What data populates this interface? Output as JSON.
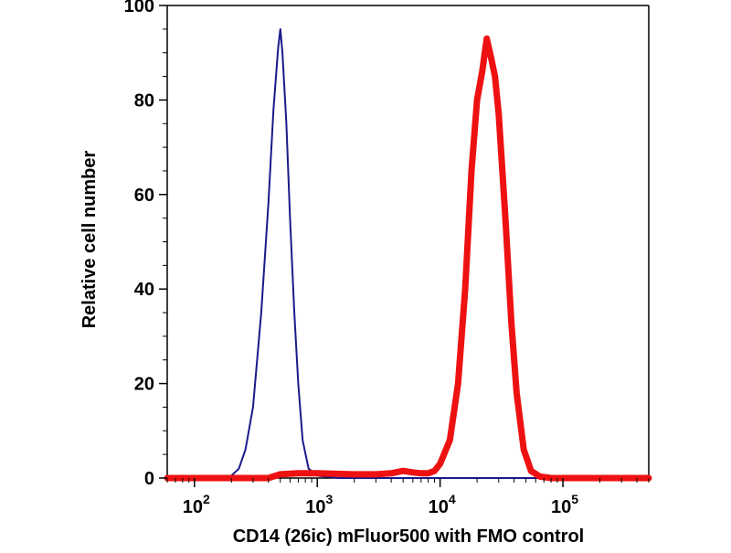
{
  "chart_data": {
    "type": "line",
    "title": "",
    "xlabel": "CD14 (26ic) mFluor500 with FMO control",
    "ylabel": "Relative cell number",
    "x_scale": "log",
    "xlim": [
      60,
      500000
    ],
    "ylim": [
      0,
      100
    ],
    "grid": false,
    "y_ticks": [
      {
        "value": 0,
        "label": "0"
      },
      {
        "value": 20,
        "label": "20"
      },
      {
        "value": 40,
        "label": "40"
      },
      {
        "value": 60,
        "label": "60"
      },
      {
        "value": 80,
        "label": "80"
      },
      {
        "value": 100,
        "label": "100"
      }
    ],
    "x_ticks": [
      {
        "value": 100,
        "base": "10",
        "exp": "2"
      },
      {
        "value": 1000,
        "base": "10",
        "exp": "3"
      },
      {
        "value": 10000,
        "base": "10",
        "exp": "4"
      },
      {
        "value": 100000,
        "base": "10",
        "exp": "5"
      }
    ],
    "series": [
      {
        "color": "#1a1a8c",
        "x": [
          60,
          150,
          200,
          230,
          260,
          300,
          350,
          400,
          440,
          480,
          500,
          520,
          560,
          600,
          650,
          700,
          760,
          850,
          1000,
          1500,
          3000,
          500000
        ],
        "y": [
          0,
          0,
          0.5,
          2,
          6,
          15,
          35,
          58,
          78,
          91,
          95,
          90,
          75,
          55,
          35,
          20,
          8,
          2,
          0.5,
          0,
          0,
          0
        ]
      },
      {
        "color": "#ee1111",
        "x": [
          60,
          400,
          500,
          700,
          1000,
          2000,
          3000,
          4000,
          5000,
          6000,
          7000,
          8000,
          9000,
          10000,
          12000,
          14000,
          16000,
          18000,
          20000,
          22000,
          24000,
          26000,
          28000,
          30000,
          34000,
          38000,
          42000,
          48000,
          55000,
          65000,
          80000,
          100000,
          500000
        ],
        "y": [
          0,
          0,
          0.8,
          1,
          1,
          0.8,
          0.8,
          1,
          1.5,
          1.2,
          1,
          1,
          1.5,
          3,
          8,
          20,
          40,
          65,
          80,
          86,
          93,
          89,
          85,
          77,
          55,
          33,
          18,
          6,
          1.5,
          0.3,
          0,
          0,
          0
        ]
      }
    ]
  }
}
